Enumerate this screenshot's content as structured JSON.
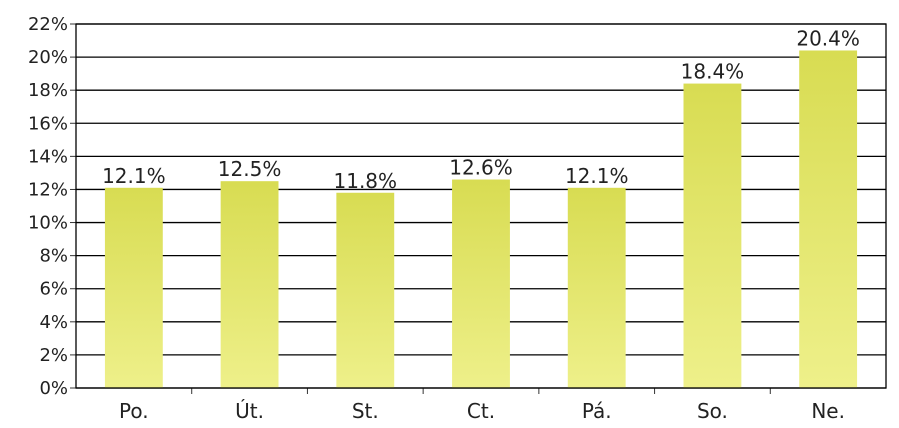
{
  "chart_data": {
    "type": "bar",
    "categories": [
      "Po.",
      "Út.",
      "St.",
      "Ct.",
      "Pá.",
      "So.",
      "Ne."
    ],
    "values": [
      12.1,
      12.5,
      11.8,
      12.6,
      12.1,
      18.4,
      20.4
    ],
    "data_labels": [
      "12.1%",
      "12.5%",
      "11.8%",
      "12.6%",
      "12.1%",
      "18.4%",
      "20.4%"
    ],
    "title": "",
    "xlabel": "",
    "ylabel": "",
    "ylim": [
      0,
      22
    ],
    "yticks": [
      0,
      2,
      4,
      6,
      8,
      10,
      12,
      14,
      16,
      18,
      20,
      22
    ],
    "ytick_labels": [
      "0%",
      "2%",
      "4%",
      "6%",
      "8%",
      "10%",
      "12%",
      "14%",
      "16%",
      "18%",
      "20%",
      "22%"
    ],
    "grid": true,
    "legend": "none",
    "bar_color": "#d8dc52",
    "bar_color_light": "#eef08a"
  }
}
